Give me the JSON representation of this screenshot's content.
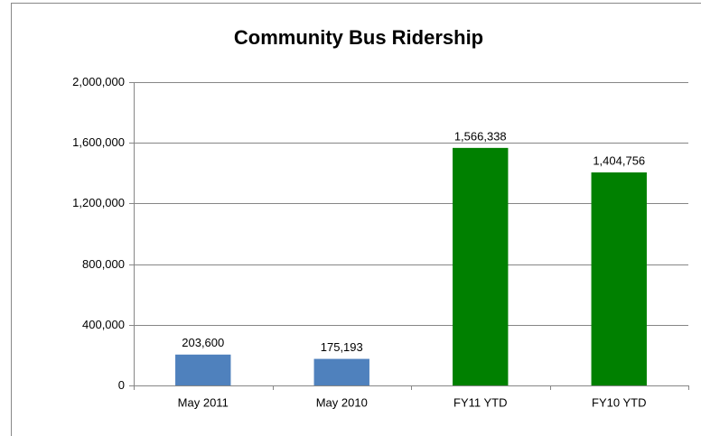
{
  "chart_data": {
    "type": "bar",
    "title": "Community Bus Ridership",
    "categories": [
      "May 2011",
      "May 2010",
      "FY11 YTD",
      "FY10 YTD"
    ],
    "values": [
      203600,
      175193,
      1566338,
      1404756
    ],
    "value_labels": [
      "203,600",
      "175,193",
      "1,566,338",
      "1,404,756"
    ],
    "colors": [
      "#4f81bd",
      "#4f81bd",
      "#008000",
      "#008000"
    ],
    "ylim": [
      0,
      2000000
    ],
    "yticks": [
      0,
      {
        "value": 400000,
        "label": "400,000"
      },
      {
        "value": 800000,
        "label": "800,000"
      },
      {
        "value": 1200000,
        "label": "1,200,000"
      },
      {
        "value": 1600000,
        "label": "1,600,000"
      },
      {
        "value": 2000000,
        "label": "2,000,000"
      }
    ],
    "grid": true
  }
}
